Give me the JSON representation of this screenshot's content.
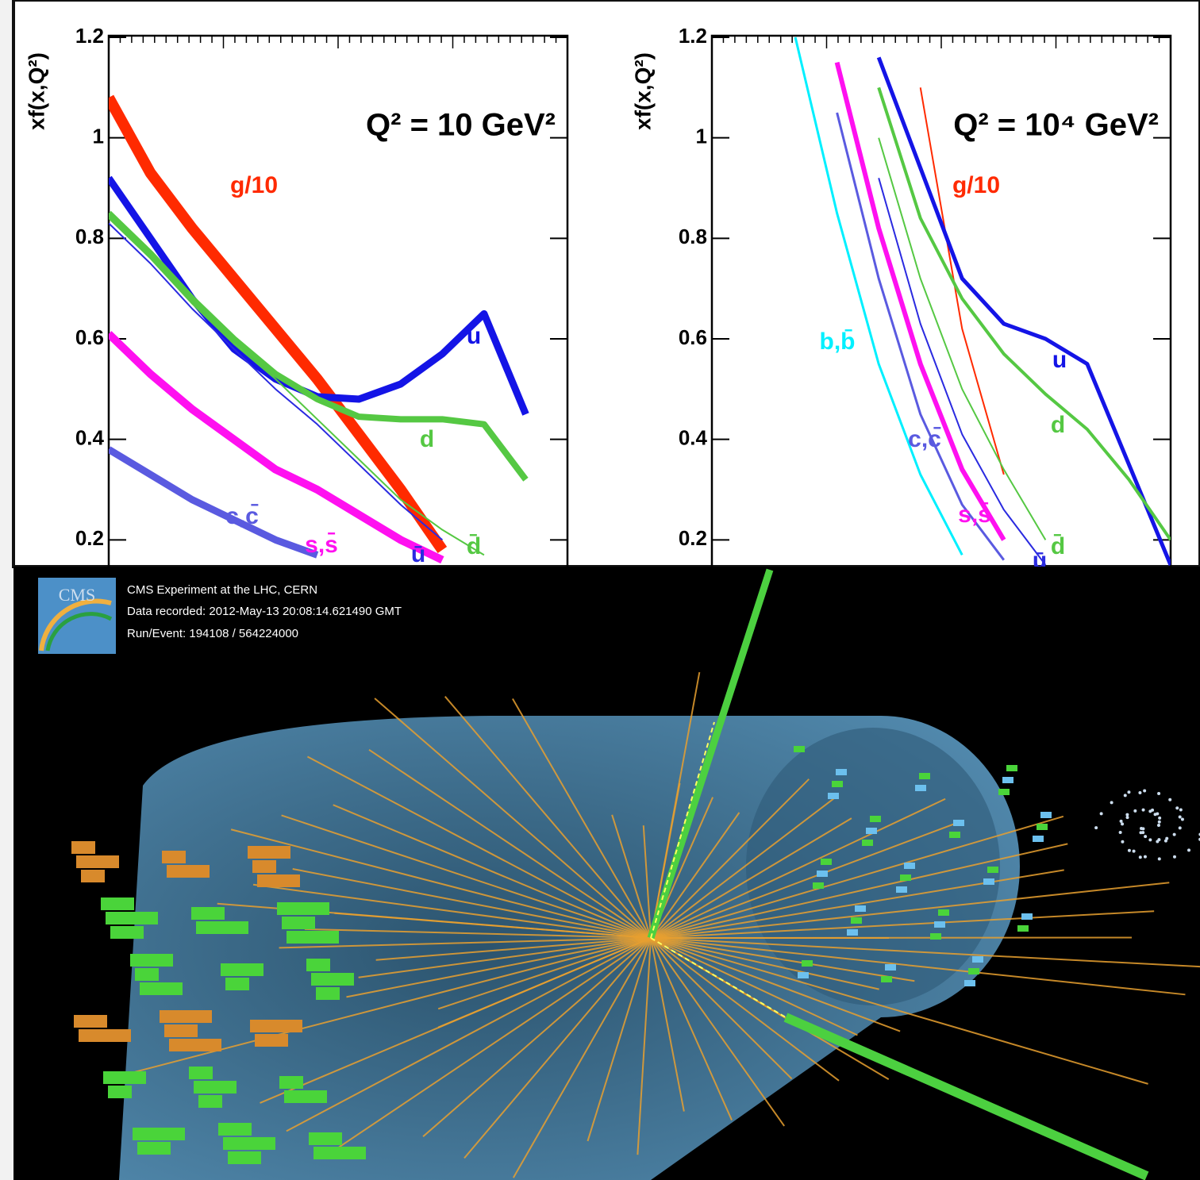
{
  "chart_data": [
    {
      "type": "line",
      "annotation": "Q² = 10 GeV²",
      "y_label": "xf(x,Q²)",
      "categories": [
        null,
        null,
        null,
        null,
        null,
        null,
        null,
        null,
        null,
        null,
        null,
        null
      ],
      "ylim": [
        0.15,
        1.2
      ],
      "yticks": [
        0.2,
        0.4,
        0.6,
        0.8,
        1,
        1.2
      ],
      "series": [
        {
          "name": "g/10",
          "color": "#ff2a00",
          "values": [
            1.08,
            0.93,
            0.82,
            0.72,
            0.62,
            0.52,
            0.41,
            0.3,
            0.18,
            null,
            null,
            null
          ]
        },
        {
          "name": "u",
          "color": "#1414e6",
          "values": [
            0.92,
            0.8,
            0.68,
            0.58,
            0.52,
            0.485,
            0.48,
            0.51,
            0.57,
            0.65,
            0.45,
            null
          ]
        },
        {
          "name": "d",
          "color": "#55c843",
          "values": [
            0.85,
            0.77,
            0.68,
            0.6,
            0.53,
            0.48,
            0.445,
            0.44,
            0.44,
            0.43,
            0.32,
            null
          ]
        },
        {
          "name": "d̄",
          "color": "#55c843",
          "values": [
            0.84,
            0.76,
            0.67,
            0.59,
            0.52,
            0.44,
            0.36,
            0.28,
            0.22,
            0.17,
            null,
            null
          ]
        },
        {
          "name": "ū",
          "color": "#2a2ae0",
          "values": [
            0.83,
            0.75,
            0.66,
            0.58,
            0.5,
            0.43,
            0.35,
            0.27,
            0.2,
            null,
            null,
            null
          ]
        },
        {
          "name": "s,s̄",
          "color": "#ff10f0",
          "values": [
            0.61,
            0.53,
            0.46,
            0.4,
            0.34,
            0.3,
            0.25,
            0.2,
            0.16,
            null,
            null,
            null
          ]
        },
        {
          "name": "c,c̄",
          "color": "#5a5ae0",
          "values": [
            0.38,
            0.33,
            0.28,
            0.24,
            0.2,
            0.17,
            null,
            null,
            null,
            null,
            null,
            null
          ]
        }
      ]
    },
    {
      "type": "line",
      "annotation": "Q² = 10⁴ GeV²",
      "y_label": "xf(x,Q²)",
      "categories": [
        null,
        null,
        null,
        null,
        null,
        null,
        null,
        null,
        null,
        null,
        null,
        null
      ],
      "ylim": [
        0.15,
        1.2
      ],
      "yticks": [
        0.2,
        0.4,
        0.6,
        0.8,
        1,
        1.2
      ],
      "series": [
        {
          "name": "g/10",
          "color": "#ff2a00",
          "values": [
            null,
            null,
            null,
            null,
            null,
            1.1,
            0.62,
            0.33,
            null,
            null,
            null,
            null
          ]
        },
        {
          "name": "u",
          "color": "#1414e6",
          "values": [
            null,
            null,
            null,
            null,
            1.16,
            0.94,
            0.72,
            0.63,
            0.6,
            0.55,
            0.35,
            0.15
          ]
        },
        {
          "name": "d",
          "color": "#55c843",
          "values": [
            null,
            null,
            null,
            null,
            1.1,
            0.84,
            0.68,
            0.57,
            0.49,
            0.42,
            0.32,
            0.2
          ]
        },
        {
          "name": "d̄",
          "color": "#55c843",
          "values": [
            null,
            null,
            null,
            null,
            1.0,
            0.72,
            0.5,
            0.34,
            0.2,
            null,
            null,
            null
          ]
        },
        {
          "name": "ū",
          "color": "#2a2ae0",
          "values": [
            null,
            null,
            null,
            null,
            0.92,
            0.63,
            0.41,
            0.26,
            0.15,
            null,
            null,
            null
          ]
        },
        {
          "name": "s,s̄",
          "color": "#ff10f0",
          "values": [
            null,
            null,
            null,
            1.15,
            0.82,
            0.55,
            0.34,
            0.2,
            null,
            null,
            null,
            null
          ]
        },
        {
          "name": "c,c̄",
          "color": "#5a5ae0",
          "values": [
            null,
            null,
            null,
            1.05,
            0.72,
            0.45,
            0.27,
            0.16,
            null,
            null,
            null,
            null
          ]
        },
        {
          "name": "b,b̄",
          "color": "#00f0ff",
          "values": [
            null,
            null,
            1.2,
            0.85,
            0.55,
            0.33,
            0.17,
            null,
            null,
            null,
            null,
            null
          ]
        }
      ]
    }
  ],
  "event_display": {
    "logo": "CMS",
    "info": [
      "CMS Experiment at the LHC, CERN",
      "Data recorded: 2012-May-13 20:08:14.621490 GMT",
      "Run/Event: 194108 / 564224000"
    ]
  }
}
